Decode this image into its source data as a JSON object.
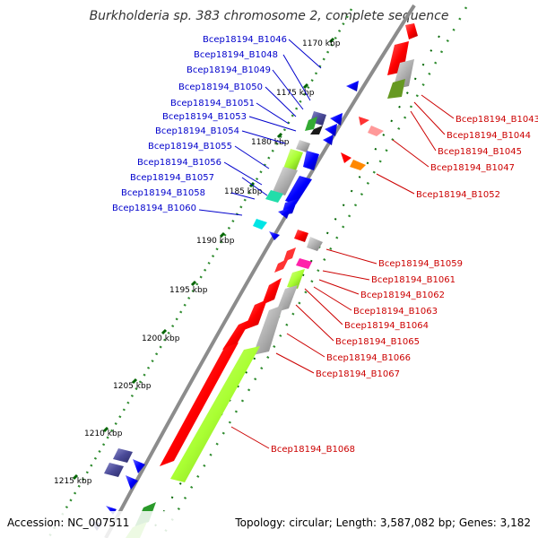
{
  "title": "Burkholderia sp. 383 chromosome 2, complete sequence",
  "footer": {
    "accession": "Accession: NC_007511",
    "summary": "Topology: circular; Length: 3,587,082 bp; Genes: 3,182"
  },
  "colors": {
    "backbone": "#8c8c8c",
    "left_label": "#0000cc",
    "right_label": "#cc0000",
    "tick_major": "#006400",
    "tick_minor": "#2e8b2e",
    "forward_red": "#ff0000",
    "reverse_blue": "#0000ff",
    "pseudo_grey": "#b0b0b0",
    "lime": "#aaff33"
  },
  "kbp_ticks": [
    "1170 kbp",
    "1175 kbp",
    "1180 kbp",
    "1185 kbp",
    "1190 kbp",
    "1195 kbp",
    "1200 kbp",
    "1205 kbp",
    "1210 kbp",
    "1215 kbp"
  ],
  "left_labels": [
    "Bcep18194_B1046",
    "Bcep18194_B1048",
    "Bcep18194_B1049",
    "Bcep18194_B1050",
    "Bcep18194_B1051",
    "Bcep18194_B1053",
    "Bcep18194_B1054",
    "Bcep18194_B1055",
    "Bcep18194_B1056",
    "Bcep18194_B1057",
    "Bcep18194_B1058",
    "Bcep18194_B1060"
  ],
  "right_labels": [
    "Bcep18194_B1043",
    "Bcep18194_B1044",
    "Bcep18194_B1045",
    "Bcep18194_B1047",
    "Bcep18194_B1052",
    "Bcep18194_B1059",
    "Bcep18194_B1061",
    "Bcep18194_B1062",
    "Bcep18194_B1063",
    "Bcep18194_B1064",
    "Bcep18194_B1065",
    "Bcep18194_B1066",
    "Bcep18194_B1067",
    "Bcep18194_B1068"
  ]
}
